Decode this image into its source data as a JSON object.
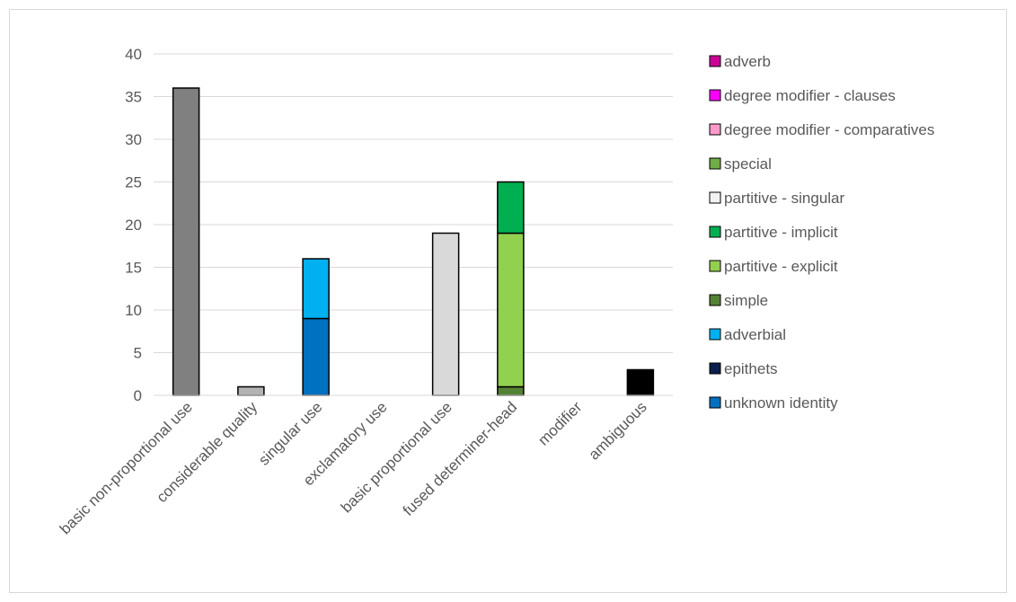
{
  "chart_data": {
    "type": "bar",
    "stacked": true,
    "title": "",
    "xlabel": "",
    "ylabel": "",
    "ylim": [
      0,
      40
    ],
    "yticks": [
      0,
      5,
      10,
      15,
      20,
      25,
      30,
      35,
      40
    ],
    "grid": "horizontal",
    "legend_position": "right",
    "categories": [
      "basic non-proportional use",
      "considerable quality",
      "singular use",
      "exclamatory use",
      "basic proportional use",
      "fused determiner-head",
      "modifier",
      "ambiguous"
    ],
    "series": [
      {
        "name": "gray",
        "legend": false,
        "color": "#808080",
        "values": [
          36,
          0,
          0,
          0,
          0,
          0,
          0,
          0
        ]
      },
      {
        "name": "silver",
        "legend": false,
        "color": "#b3b3b3",
        "values": [
          0,
          1,
          0,
          0,
          0,
          0,
          0,
          0
        ]
      },
      {
        "name": "unknown identity",
        "legend": true,
        "color": "#0070c0",
        "values": [
          0,
          0,
          9,
          0,
          0,
          0,
          0,
          0
        ]
      },
      {
        "name": "epithets",
        "legend": true,
        "color": "#0b1f4d",
        "values": [
          0,
          0,
          0,
          0,
          0,
          0,
          0,
          0
        ]
      },
      {
        "name": "adverbial",
        "legend": true,
        "color": "#00b0f0",
        "values": [
          0,
          0,
          7,
          0,
          0,
          0,
          0,
          0
        ]
      },
      {
        "name": "light gray",
        "legend": false,
        "color": "#d9d9d9",
        "values": [
          0,
          0,
          0,
          0,
          19,
          0,
          0,
          0
        ]
      },
      {
        "name": "simple",
        "legend": true,
        "color": "#548235",
        "values": [
          0,
          0,
          0,
          0,
          0,
          1,
          0,
          0
        ]
      },
      {
        "name": "partitive - explicit",
        "legend": true,
        "color": "#92d050",
        "values": [
          0,
          0,
          0,
          0,
          0,
          18,
          0,
          0
        ]
      },
      {
        "name": "partitive - implicit",
        "legend": true,
        "color": "#00b050",
        "values": [
          0,
          0,
          0,
          0,
          0,
          6,
          0,
          0
        ]
      },
      {
        "name": "partitive - singular",
        "legend": true,
        "color": "#f2f2f2",
        "values": [
          0,
          0,
          0,
          0,
          0,
          0,
          0,
          0
        ]
      },
      {
        "name": "special",
        "legend": true,
        "color": "#70ad47",
        "values": [
          0,
          0,
          0,
          0,
          0,
          0,
          0,
          0
        ]
      },
      {
        "name": "degree modifier - comparatives",
        "legend": true,
        "color": "#ff99cc",
        "values": [
          0,
          0,
          0,
          0,
          0,
          0,
          0,
          0
        ]
      },
      {
        "name": "degree modifier - clauses",
        "legend": true,
        "color": "#ff00ff",
        "values": [
          0,
          0,
          0,
          0,
          0,
          0,
          0,
          0
        ]
      },
      {
        "name": "adverb",
        "legend": true,
        "color": "#cc0099",
        "values": [
          0,
          0,
          0,
          0,
          0,
          0,
          0,
          0
        ]
      },
      {
        "name": "black",
        "legend": false,
        "color": "#000000",
        "values": [
          0,
          0,
          0,
          0,
          0,
          0,
          0,
          3
        ]
      }
    ],
    "legend_order": [
      "adverb",
      "degree modifier - clauses",
      "degree modifier - comparatives",
      "special",
      "partitive - singular",
      "partitive - implicit",
      "partitive - explicit",
      "simple",
      "adverbial",
      "epithets",
      "unknown identity"
    ]
  }
}
